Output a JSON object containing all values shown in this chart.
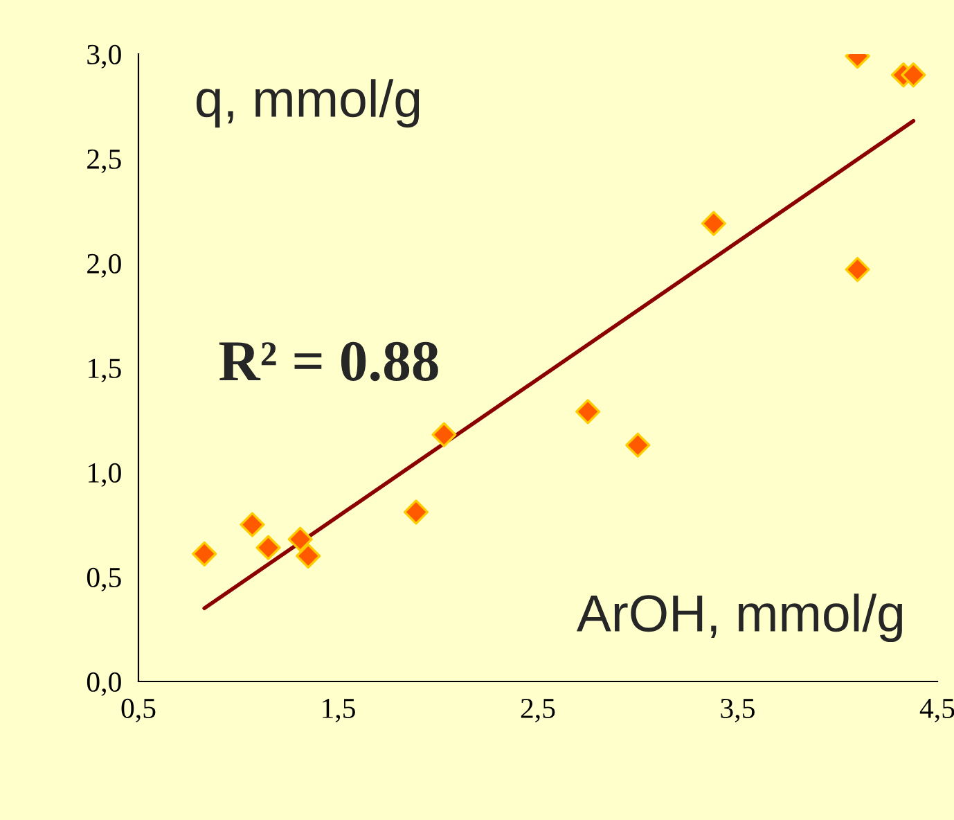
{
  "chart_data": {
    "type": "scatter",
    "xlabel": "ArOH, mmol/g",
    "ylabel": "q, mmol/g",
    "annotations": [
      "R² = 0.88"
    ],
    "series": [
      {
        "color": "#ff5a00",
        "x": [
          0.83,
          1.07,
          1.15,
          1.31,
          1.35,
          1.89,
          2.03,
          2.75,
          3.0,
          3.38,
          4.1,
          4.1,
          4.33,
          4.38
        ],
        "values": [
          0.61,
          0.75,
          0.64,
          0.68,
          0.6,
          0.81,
          1.18,
          1.29,
          1.13,
          2.19,
          1.97,
          2.99,
          2.9,
          2.9
        ],
        "marker": "diamond"
      },
      {
        "type": "line",
        "color": "#8b0000",
        "x": [
          0.83,
          4.38
        ],
        "values": [
          0.35,
          2.68
        ]
      }
    ],
    "xlim": [
      0.5,
      4.5
    ],
    "ylim": [
      0,
      3.0
    ],
    "xticks": [
      {
        "value": 0.5,
        "label": "0,5"
      },
      {
        "value": 1.5,
        "label": "1,5"
      },
      {
        "value": 2.5,
        "label": "2,5"
      },
      {
        "value": 3.5,
        "label": "3,5"
      },
      {
        "value": 4.5,
        "label": "4,5"
      }
    ],
    "yticks": [
      {
        "value": 0,
        "label": "0,0"
      },
      {
        "value": 0.5,
        "label": "0,5"
      },
      {
        "value": 1.0,
        "label": "1,0"
      },
      {
        "value": 1.5,
        "label": "1,5"
      },
      {
        "value": 2.0,
        "label": "2,0"
      },
      {
        "value": 2.5,
        "label": "2,5"
      },
      {
        "value": 3.0,
        "label": "3,0"
      }
    ],
    "grid": false,
    "legend": false
  }
}
